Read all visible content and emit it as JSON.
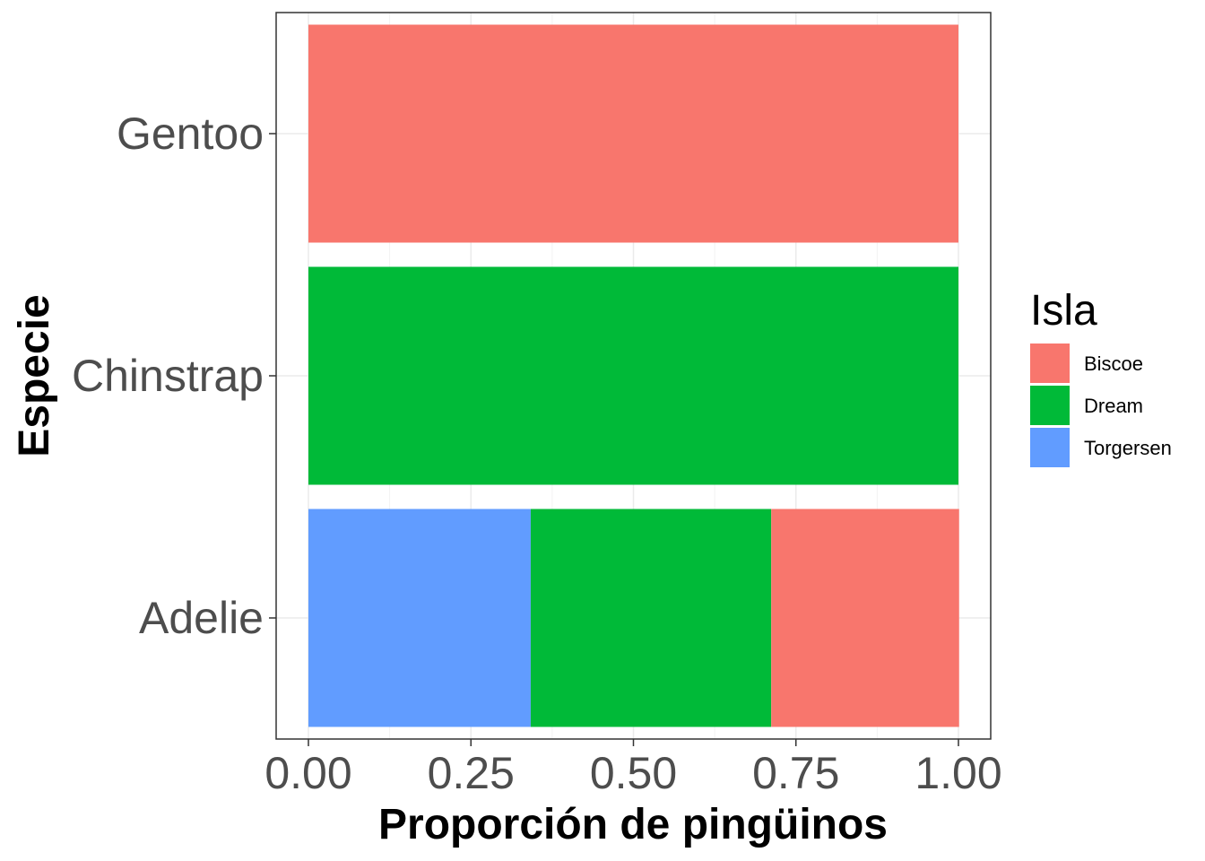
{
  "chart_data": {
    "type": "bar",
    "orientation": "horizontal",
    "stacked": true,
    "normalized": true,
    "categories": [
      "Adelie",
      "Chinstrap",
      "Gentoo"
    ],
    "series": [
      {
        "name": "Torgersen",
        "values": [
          0.342,
          0,
          0
        ],
        "color": "#619CFF"
      },
      {
        "name": "Dream",
        "values": [
          0.37,
          1.0,
          0
        ],
        "color": "#00BA38"
      },
      {
        "name": "Biscoe",
        "values": [
          0.289,
          0,
          1.0
        ],
        "color": "#F8766D"
      }
    ],
    "xlabel": "Proporción de pingüinos",
    "ylabel": "Especie",
    "xlim": [
      0,
      1
    ],
    "xticks": [
      "0.00",
      "0.25",
      "0.50",
      "0.75",
      "1.00"
    ],
    "grid": true,
    "legend": {
      "title": "Isla",
      "placement": "right",
      "entries": [
        {
          "label": "Biscoe",
          "color": "#F8766D"
        },
        {
          "label": "Dream",
          "color": "#00BA38"
        },
        {
          "label": "Torgersen",
          "color": "#619CFF"
        }
      ]
    }
  }
}
